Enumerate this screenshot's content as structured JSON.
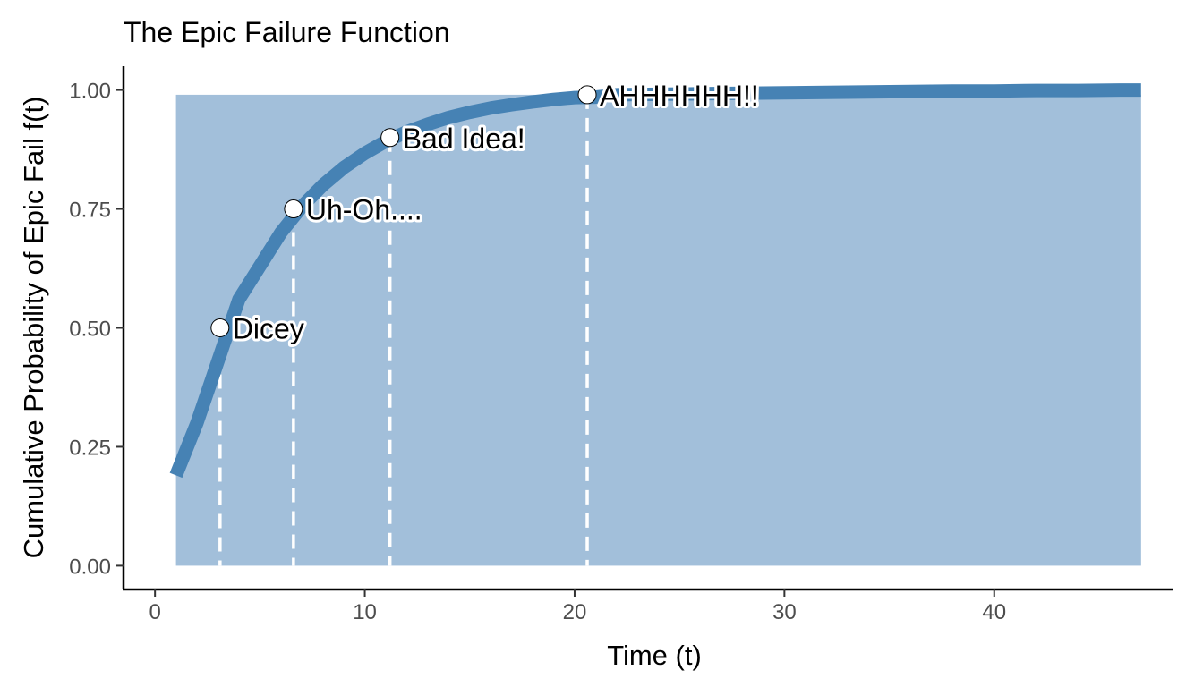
{
  "chart_data": {
    "type": "area",
    "title": "The Epic Failure Function",
    "xlabel": "Time (t)",
    "ylabel": "Cumulative Probability of Epic Fail f(t)",
    "xlim": [
      -1.5,
      48.5
    ],
    "ylim": [
      -0.05,
      1.05
    ],
    "x_ticks": [
      0,
      10,
      20,
      30,
      40
    ],
    "x_tick_labels": [
      "0",
      "10",
      "20",
      "30",
      "40"
    ],
    "y_ticks": [
      0,
      0.25,
      0.5,
      0.75,
      1
    ],
    "y_tick_labels": [
      "0.00",
      "0.25",
      "0.50",
      "0.75",
      "1.00"
    ],
    "grid": false,
    "legend": "none",
    "colors": {
      "line": "#4682b4",
      "area": "#a2bfda",
      "marker_fill": "#ffffff",
      "marker_stroke": "#000000",
      "dashed": "#ffffff"
    },
    "series": [
      {
        "x": [
          1,
          2,
          3,
          4,
          5,
          6,
          7,
          8,
          9,
          10,
          11,
          12,
          13,
          14,
          15,
          16,
          17,
          18,
          19,
          20,
          21,
          22,
          24,
          26,
          28,
          30,
          32,
          34,
          36,
          38,
          40,
          42,
          44,
          46,
          47
        ],
        "y": [
          0.19,
          0.3,
          0.43,
          0.56,
          0.63,
          0.7,
          0.755,
          0.8,
          0.837,
          0.867,
          0.892,
          0.912,
          0.928,
          0.942,
          0.953,
          0.962,
          0.969,
          0.975,
          0.98,
          0.984,
          0.985,
          0.99,
          0.991,
          0.992,
          0.993,
          0.994,
          0.995,
          0.996,
          0.997,
          0.998,
          0.998,
          0.999,
          0.999,
          1.0,
          1.0
        ]
      }
    ],
    "fill_x": [
      1,
      47
    ],
    "fill_y": 0.99,
    "annotations": [
      {
        "x": 3.1,
        "y": 0.5,
        "label": "Dicey"
      },
      {
        "x": 6.6,
        "y": 0.75,
        "label": "Uh-Oh...."
      },
      {
        "x": 11.2,
        "y": 0.9,
        "label": "Bad Idea!"
      },
      {
        "x": 20.6,
        "y": 0.99,
        "label": "AHHHHHH!!"
      }
    ]
  }
}
